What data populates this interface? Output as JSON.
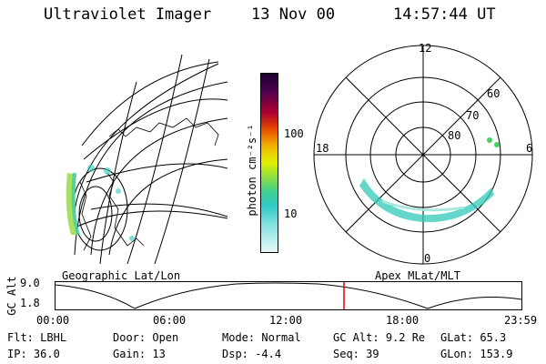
{
  "header": {
    "instrument": "Ultraviolet Imager",
    "date": "13 Nov 00",
    "time": "14:57:44 UT"
  },
  "panels": {
    "left_label": "Geographic Lat/Lon",
    "right_label": "Apex MLat/MLT"
  },
  "colorbar": {
    "label": "photon cm⁻²s⁻¹",
    "ticks": [
      "100",
      "10"
    ]
  },
  "polar": {
    "mlt_labels": [
      "12",
      "18",
      "6",
      "0"
    ],
    "lat_labels": [
      "60",
      "70",
      "80"
    ]
  },
  "timeline": {
    "ylabel": "GC Alt",
    "y_ticks": [
      "9.0",
      "1.8"
    ],
    "x_ticks": [
      "00:00",
      "06:00",
      "12:00",
      "18:00",
      "23:59"
    ]
  },
  "status": {
    "row1": [
      {
        "key": "Flt:",
        "val": "LBHL"
      },
      {
        "key": "Door:",
        "val": "Open"
      },
      {
        "key": "Mode:",
        "val": "Normal"
      },
      {
        "key": "GC Alt:",
        "val": "9.2 Re"
      },
      {
        "key": "GLat:",
        "val": "65.3"
      }
    ],
    "row2": [
      {
        "key": "IP:",
        "val": "36.0"
      },
      {
        "key": "Gain:",
        "val": "13"
      },
      {
        "key": "Dsp:",
        "val": "-4.4"
      },
      {
        "key": "Seq:",
        "val": "39"
      },
      {
        "key": "GLon:",
        "val": "153.9"
      }
    ]
  },
  "colors": {
    "aurora_green": "#a8e060",
    "aurora_cyan": "#30c8b8",
    "marker_red": "#e00000"
  }
}
